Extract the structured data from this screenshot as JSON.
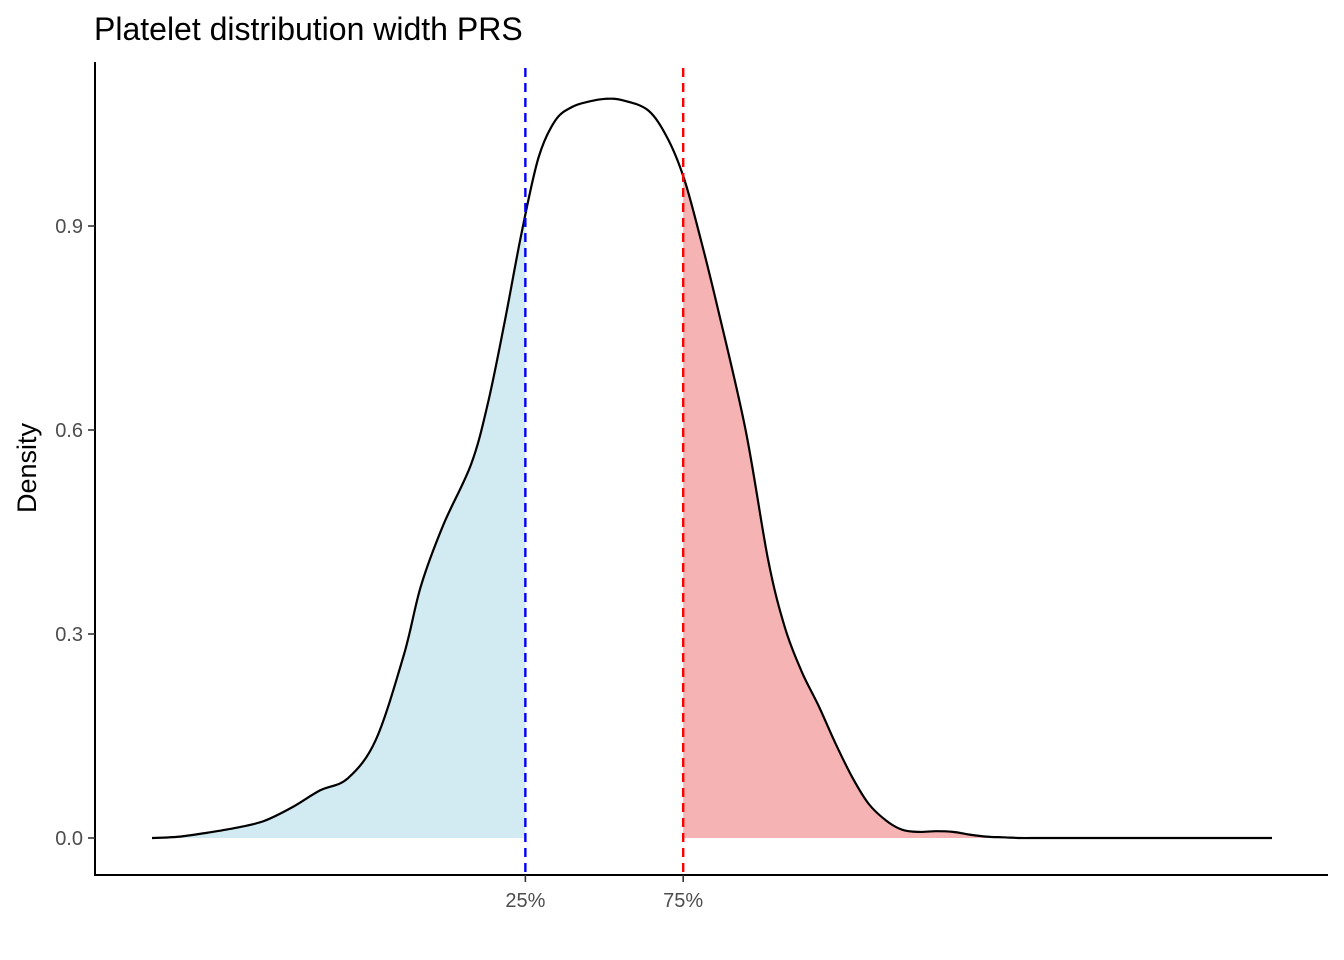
{
  "chart_data": {
    "type": "area",
    "title": "Platelet distribution width PRS",
    "xlabel": "",
    "ylabel": "Density",
    "ylim": [
      -0.054,
      1.12
    ],
    "y_ticks": [
      {
        "value": 0.0,
        "label": "0.0"
      },
      {
        "value": 0.3,
        "label": "0.3"
      },
      {
        "value": 0.6,
        "label": "0.6"
      },
      {
        "value": 0.9,
        "label": "0.9"
      }
    ],
    "x_ticks": [
      {
        "quantile": 0.25,
        "label": "25%"
      },
      {
        "quantile": 0.75,
        "label": "75%"
      }
    ],
    "grid": false,
    "quantile_lines": [
      {
        "label": "25%",
        "color": "#0000ff",
        "fill": "#add8e6"
      },
      {
        "label": "75%",
        "color": "#ff0000",
        "fill": "#f08080"
      }
    ],
    "density_curve": {
      "x": [
        0.0,
        0.025,
        0.05,
        0.075,
        0.1,
        0.125,
        0.15,
        0.175,
        0.2,
        0.225,
        0.24,
        0.26,
        0.285,
        0.3,
        0.315,
        0.33,
        0.345,
        0.36,
        0.375,
        0.39,
        0.405,
        0.42,
        0.443,
        0.46,
        0.475,
        0.49,
        0.505,
        0.53,
        0.55,
        0.565,
        0.58,
        0.595,
        0.61,
        0.625,
        0.64,
        0.656,
        0.67,
        0.685,
        0.7,
        0.715,
        0.73,
        0.745,
        0.76,
        0.775,
        0.79,
        0.8,
        0.815,
        0.83,
        0.85,
        0.865,
        0.88,
        0.9,
        0.925,
        0.95,
        0.975,
        1.0
      ],
      "y": [
        0.0,
        0.002,
        0.008,
        0.015,
        0.025,
        0.045,
        0.07,
        0.088,
        0.145,
        0.27,
        0.37,
        0.46,
        0.55,
        0.64,
        0.76,
        0.89,
        1.0,
        1.055,
        1.075,
        1.083,
        1.087,
        1.085,
        1.07,
        1.03,
        0.97,
        0.88,
        0.78,
        0.6,
        0.41,
        0.31,
        0.245,
        0.195,
        0.14,
        0.09,
        0.05,
        0.025,
        0.012,
        0.009,
        0.01,
        0.009,
        0.005,
        0.002,
        0.001,
        0.0,
        0.0,
        0.0,
        0.0,
        0.0,
        0.0,
        0.0,
        0.0,
        0.0,
        0.0,
        0.0,
        0.0,
        0.0
      ]
    }
  }
}
